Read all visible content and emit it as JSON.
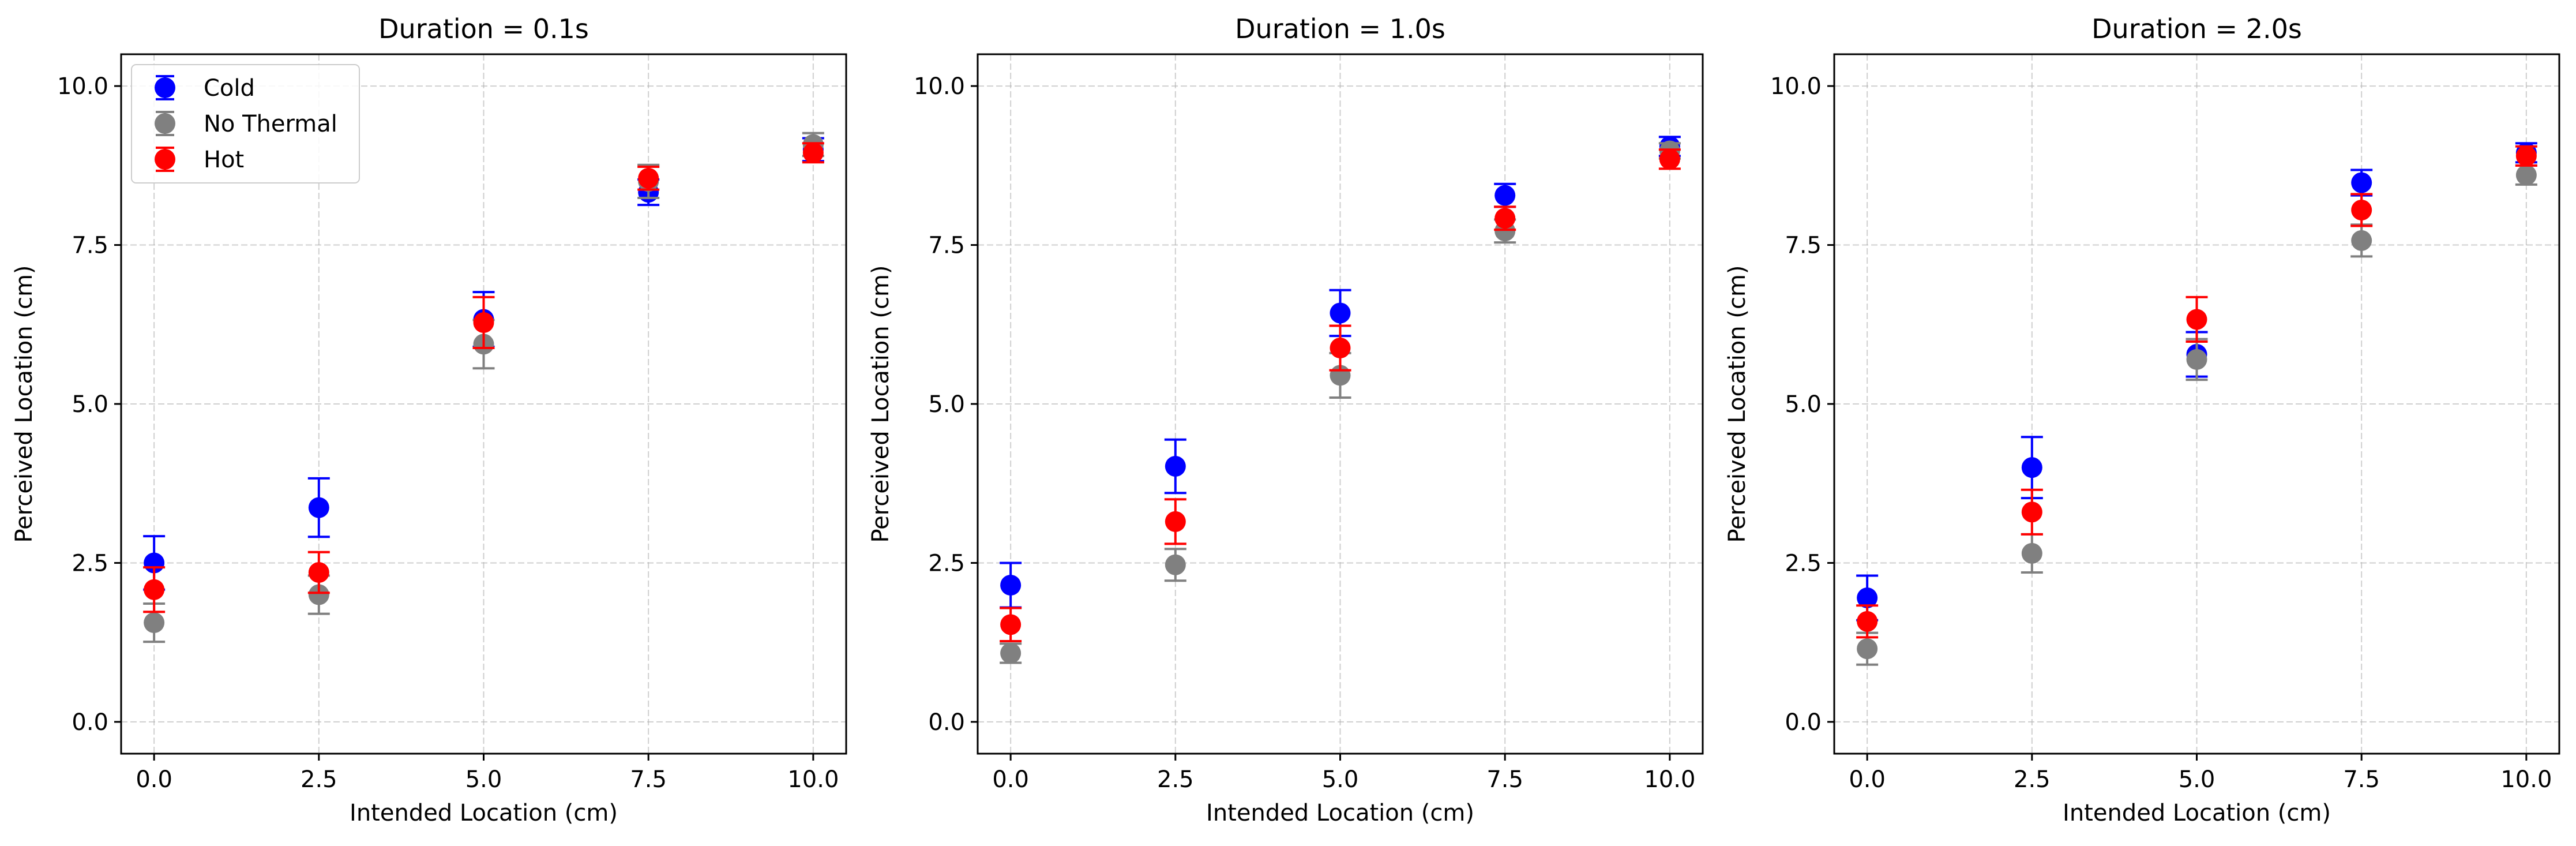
{
  "chart_data": [
    {
      "type": "scatter",
      "title": "Duration = 0.1s",
      "xlabel": "Intended Location (cm)",
      "ylabel": "Perceived Location (cm)",
      "xlim": [
        -0.5,
        10.5
      ],
      "ylim": [
        -0.5,
        10.5
      ],
      "xticks": [
        "0.0",
        "2.5",
        "5.0",
        "7.5",
        "10.0"
      ],
      "yticks": [
        "0.0",
        "2.5",
        "5.0",
        "7.5",
        "10.0"
      ],
      "grid": true,
      "legend": "top-left",
      "x": [
        0,
        2.5,
        5,
        7.5,
        10
      ],
      "series": [
        {
          "name": "Cold",
          "color": "#0000ff",
          "y": [
            2.5,
            3.37,
            6.33,
            8.33,
            9.0
          ],
          "err": [
            0.42,
            0.46,
            0.43,
            0.2,
            0.18
          ]
        },
        {
          "name": "No Thermal",
          "color": "#808080",
          "y": [
            1.56,
            2.0,
            5.94,
            8.5,
            9.08
          ],
          "err": [
            0.3,
            0.3,
            0.38,
            0.26,
            0.18
          ]
        },
        {
          "name": "Hot",
          "color": "#ff0000",
          "y": [
            2.08,
            2.35,
            6.28,
            8.55,
            8.95
          ],
          "err": [
            0.35,
            0.32,
            0.4,
            0.18,
            0.15
          ]
        }
      ]
    },
    {
      "type": "scatter",
      "title": "Duration = 1.0s",
      "xlabel": "Intended Location (cm)",
      "ylabel": "Perceived Location (cm)",
      "xlim": [
        -0.5,
        10.5
      ],
      "ylim": [
        -0.5,
        10.5
      ],
      "xticks": [
        "0.0",
        "2.5",
        "5.0",
        "7.5",
        "10.0"
      ],
      "yticks": [
        "0.0",
        "2.5",
        "5.0",
        "7.5",
        "10.0"
      ],
      "grid": true,
      "x": [
        0,
        2.5,
        5,
        7.5,
        10
      ],
      "series": [
        {
          "name": "Cold",
          "color": "#0000ff",
          "y": [
            2.15,
            4.02,
            6.43,
            8.28,
            9.05
          ],
          "err": [
            0.35,
            0.42,
            0.36,
            0.18,
            0.15
          ]
        },
        {
          "name": "No Thermal",
          "color": "#808080",
          "y": [
            1.08,
            2.47,
            5.45,
            7.72,
            8.98
          ],
          "err": [
            0.15,
            0.25,
            0.35,
            0.18,
            0.12
          ]
        },
        {
          "name": "Hot",
          "color": "#ff0000",
          "y": [
            1.53,
            3.15,
            5.88,
            7.92,
            8.85
          ],
          "err": [
            0.26,
            0.35,
            0.35,
            0.18,
            0.15
          ]
        }
      ]
    },
    {
      "type": "scatter",
      "title": "Duration = 2.0s",
      "xlabel": "Intended Location (cm)",
      "ylabel": "Perceived Location (cm)",
      "xlim": [
        -0.5,
        10.5
      ],
      "ylim": [
        -0.5,
        10.5
      ],
      "xticks": [
        "0.0",
        "2.5",
        "5.0",
        "7.5",
        "10.0"
      ],
      "yticks": [
        "0.0",
        "2.5",
        "5.0",
        "7.5",
        "10.0"
      ],
      "grid": true,
      "x": [
        0,
        2.5,
        5,
        7.5,
        10
      ],
      "series": [
        {
          "name": "Cold",
          "color": "#0000ff",
          "y": [
            1.95,
            4.0,
            5.78,
            8.48,
            8.95
          ],
          "err": [
            0.35,
            0.48,
            0.35,
            0.2,
            0.15
          ]
        },
        {
          "name": "No Thermal",
          "color": "#808080",
          "y": [
            1.15,
            2.65,
            5.7,
            7.57,
            8.6
          ],
          "err": [
            0.25,
            0.3,
            0.32,
            0.25,
            0.15
          ]
        },
        {
          "name": "Hot",
          "color": "#ff0000",
          "y": [
            1.58,
            3.3,
            6.33,
            8.05,
            8.9
          ],
          "err": [
            0.25,
            0.35,
            0.35,
            0.25,
            0.15
          ]
        }
      ]
    }
  ]
}
